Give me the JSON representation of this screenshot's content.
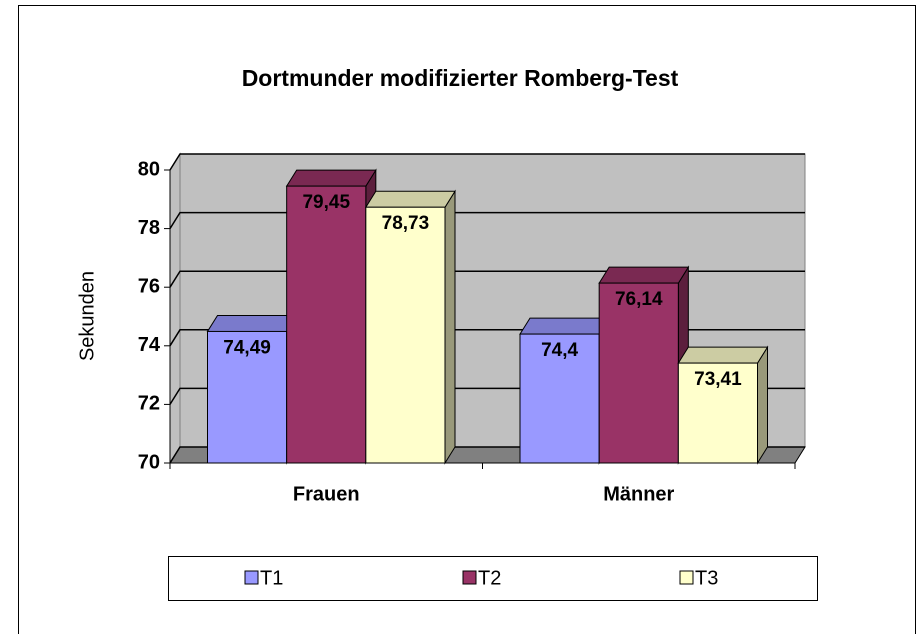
{
  "chart_data": {
    "type": "bar3d",
    "title": "Dortmunder modifizierter Romberg-Test",
    "y_label": "Sekunden",
    "categories": [
      "Frauen",
      "Männer"
    ],
    "series": [
      {
        "name": "T1",
        "color": "#9999ff",
        "values": [
          74.49,
          74.4
        ],
        "value_labels": [
          "74,49",
          "74,4"
        ]
      },
      {
        "name": "T2",
        "color": "#993366",
        "values": [
          79.45,
          76.14
        ],
        "value_labels": [
          "79,45",
          "76,14"
        ]
      },
      {
        "name": "T3",
        "color": "#ffffcc",
        "values": [
          78.73,
          73.41
        ],
        "value_labels": [
          "78,73",
          "73,41"
        ]
      }
    ],
    "ylim": [
      70,
      80
    ],
    "yticks": [
      70,
      72,
      74,
      76,
      78,
      80
    ],
    "grid": true,
    "legend": "bottom"
  }
}
